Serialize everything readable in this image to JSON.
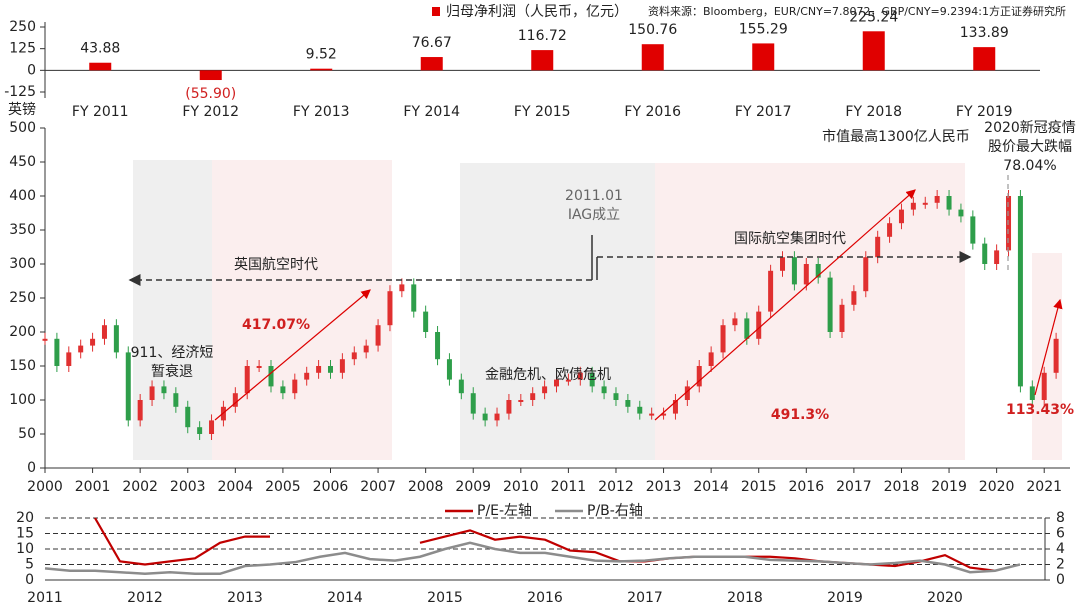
{
  "chart_data": [
    {
      "type": "bar",
      "legend": "归母净利润（人民币，亿元）",
      "source": "资料来源：Bloomberg，EUR/CNY=7.8072，GBP/CNY=9.2394:1方正证券研究所",
      "categories": [
        "FY 2011",
        "FY 2012",
        "FY 2013",
        "FY 2014",
        "FY 2015",
        "FY 2016",
        "FY 2017",
        "FY 2018",
        "FY 2019"
      ],
      "values": [
        43.88,
        -55.9,
        9.52,
        76.67,
        116.72,
        150.76,
        155.29,
        225.24,
        133.89
      ],
      "value_labels": [
        "43.88",
        "(55.90)",
        "9.52",
        "76.67",
        "116.72",
        "150.76",
        "155.29",
        "225.24",
        "133.89"
      ],
      "color": "#e00000",
      "ylim": [
        -125,
        250
      ],
      "yticks": [
        -125,
        0,
        125,
        250
      ]
    },
    {
      "type": "candlestick",
      "y_label": "英镑",
      "x": [
        2000,
        2000.25,
        2000.5,
        2000.75,
        2001,
        2001.25,
        2001.5,
        2001.75,
        2002,
        2002.25,
        2002.5,
        2002.75,
        2003,
        2003.25,
        2003.5,
        2003.75,
        2004,
        2004.25,
        2004.5,
        2004.75,
        2005,
        2005.25,
        2005.5,
        2005.75,
        2006,
        2006.25,
        2006.5,
        2006.75,
        2007,
        2007.25,
        2007.5,
        2007.75,
        2008,
        2008.25,
        2008.5,
        2008.75,
        2009,
        2009.25,
        2009.5,
        2009.75,
        2010,
        2010.25,
        2010.5,
        2010.75,
        2011,
        2011.25,
        2011.5,
        2011.75,
        2012,
        2012.25,
        2012.5,
        2012.75,
        2013,
        2013.25,
        2013.5,
        2013.75,
        2014,
        2014.25,
        2014.5,
        2014.75,
        2015,
        2015.25,
        2015.5,
        2015.75,
        2016,
        2016.25,
        2016.5,
        2016.75,
        2017,
        2017.25,
        2017.5,
        2017.75,
        2018,
        2018.25,
        2018.5,
        2018.75,
        2019,
        2019.25,
        2019.5,
        2019.75,
        2020,
        2020.25,
        2020.5,
        2020.75,
        2021,
        2021.25
      ],
      "values": [
        190,
        150,
        170,
        180,
        190,
        210,
        170,
        70,
        100,
        120,
        110,
        90,
        60,
        50,
        70,
        90,
        110,
        150,
        150,
        120,
        110,
        130,
        140,
        150,
        140,
        160,
        170,
        180,
        210,
        260,
        270,
        230,
        200,
        160,
        130,
        110,
        80,
        70,
        80,
        100,
        100,
        110,
        120,
        130,
        130,
        140,
        120,
        110,
        100,
        90,
        80,
        80,
        80,
        100,
        120,
        150,
        170,
        210,
        220,
        190,
        230,
        290,
        310,
        270,
        300,
        280,
        200,
        240,
        260,
        310,
        340,
        360,
        380,
        390,
        390,
        400,
        380,
        370,
        330,
        300,
        320,
        400,
        120,
        100,
        140,
        190
      ],
      "up_color": "#e03030",
      "down_color": "#2e9e4a",
      "xlim": [
        2000,
        2021.5
      ],
      "xticks": [
        2000,
        2001,
        2002,
        2003,
        2004,
        2005,
        2006,
        2007,
        2008,
        2009,
        2010,
        2011,
        2012,
        2013,
        2014,
        2015,
        2016,
        2017,
        2018,
        2019,
        2020,
        2021
      ],
      "ylim": [
        0,
        500
      ],
      "yticks": [
        0,
        50,
        100,
        150,
        200,
        250,
        300,
        350,
        400,
        450,
        500
      ],
      "annotations": [
        "英国航空时代",
        "国际航空集团时代",
        "2011.01",
        "IAG成立",
        "911、经济短",
        "暂衰退",
        "417.07%",
        "金融危机、欧债危机",
        "491.3%",
        "市值最高1300亿人民币",
        "2020新冠疫情",
        "股价最大跌幅",
        "78.04%",
        "113.43%"
      ]
    },
    {
      "type": "line",
      "x": [
        2011,
        2011.25,
        2011.5,
        2011.75,
        2012,
        2012.25,
        2012.5,
        2012.75,
        2013,
        2013.25,
        2013.5,
        2013.75,
        2014,
        2014.25,
        2014.5,
        2014.75,
        2015,
        2015.25,
        2015.5,
        2015.75,
        2016,
        2016.25,
        2016.5,
        2016.75,
        2017,
        2017.25,
        2017.5,
        2017.75,
        2018,
        2018.25,
        2018.5,
        2018.75,
        2019,
        2019.25,
        2019.5,
        2019.75,
        2020,
        2020.25,
        2020.5,
        2020.75
      ],
      "series": [
        {
          "name": "P/E-左轴",
          "color": "#c00000",
          "values": [
            null,
            null,
            20,
            6,
            5,
            6,
            7,
            12,
            14,
            14,
            null,
            null,
            null,
            null,
            null,
            12,
            14,
            16,
            13,
            14,
            13,
            9.5,
            9,
            6,
            6,
            7,
            7.5,
            7.5,
            7.5,
            7.5,
            7,
            6,
            5.5,
            5,
            4.5,
            6,
            8,
            4,
            3,
            null
          ]
        },
        {
          "name": "P/B-右轴",
          "color": "#8c8c8c",
          "axis": "y2",
          "values": [
            1.5,
            1.2,
            1.2,
            1.0,
            0.8,
            1.0,
            0.8,
            0.8,
            1.8,
            2.0,
            2.3,
            3.0,
            3.5,
            2.7,
            2.5,
            3.0,
            4.0,
            4.8,
            4.0,
            3.5,
            3.5,
            3.0,
            2.5,
            2.4,
            2.5,
            2.8,
            3.0,
            3.0,
            3.0,
            2.6,
            2.5,
            2.4,
            2.2,
            2.0,
            2.2,
            2.5,
            2.0,
            1.0,
            1.2,
            2.0
          ]
        }
      ],
      "xlim": [
        2011,
        2021
      ],
      "xticks": [
        2011,
        2012,
        2013,
        2014,
        2015,
        2016,
        2017,
        2018,
        2019,
        2020
      ],
      "ylim": [
        0,
        20
      ],
      "yticks": [
        0,
        5,
        10,
        15,
        20
      ],
      "y2lim": [
        0,
        8
      ],
      "y2ticks": [
        0,
        2,
        4,
        6,
        8
      ],
      "grid": true
    }
  ]
}
